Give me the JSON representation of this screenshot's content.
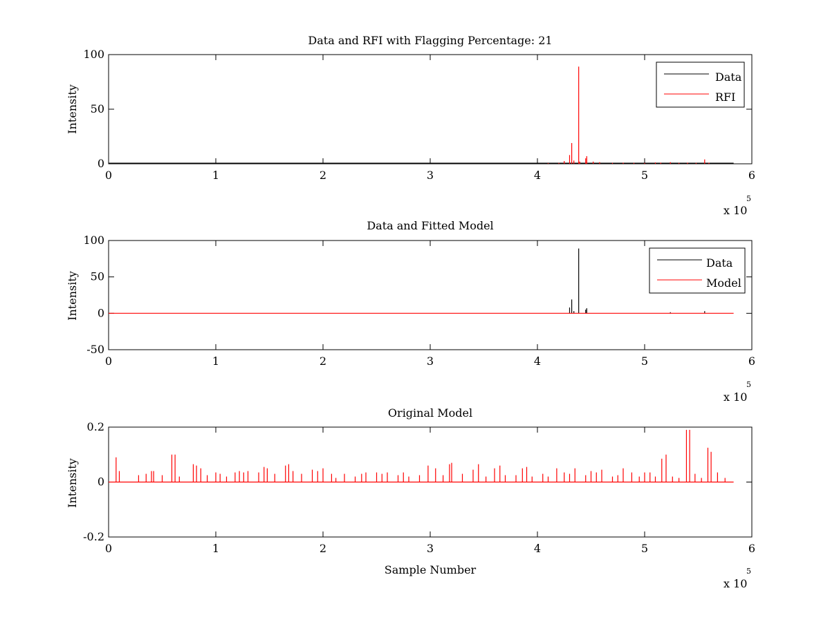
{
  "chart_data": [
    {
      "type": "line",
      "title": "Data and RFI with Flagging Percentage: 21",
      "xlabel": "",
      "ylabel": "Intensity",
      "xlim": [
        0,
        600000
      ],
      "ylim": [
        0,
        100
      ],
      "xticks": [
        0,
        1,
        2,
        3,
        4,
        5,
        6
      ],
      "yticks": [
        0,
        50,
        100
      ],
      "x_multiplier": {
        "base": "x 10",
        "exponent": "5"
      },
      "legend": {
        "placement": "top-right"
      },
      "series": [
        {
          "name": "Data",
          "color": "#000000",
          "kind": "baseline",
          "x": [
            0,
            583000
          ],
          "y": [
            0.6,
            0.6
          ]
        },
        {
          "name": "RFI",
          "color": "#ff0000",
          "kind": "spikes",
          "x": [
            410000,
            420000,
            425000,
            430000,
            432000,
            434000,
            438500,
            439500,
            445000,
            446000,
            452000,
            458000,
            470000,
            480000,
            490000,
            500000,
            510000,
            515000,
            524000,
            532000,
            540000,
            548000,
            556000,
            560000
          ],
          "y": [
            0.6,
            0.8,
            2.5,
            8,
            19,
            3,
            89,
            2,
            5,
            7,
            2,
            1.5,
            0.8,
            1,
            0.8,
            0.8,
            1.2,
            1,
            1.5,
            0.8,
            1,
            0.8,
            4,
            0.9
          ]
        }
      ]
    },
    {
      "type": "line",
      "title": "Data and Fitted Model",
      "xlabel": "",
      "ylabel": "Intensity",
      "xlim": [
        0,
        600000
      ],
      "ylim": [
        -50,
        100
      ],
      "xticks": [
        0,
        1,
        2,
        3,
        4,
        5,
        6
      ],
      "yticks": [
        -50,
        0,
        50,
        100
      ],
      "x_multiplier": {
        "base": "x 10",
        "exponent": "5"
      },
      "legend": {
        "placement": "top-right"
      },
      "series": [
        {
          "name": "Data",
          "color": "#000000",
          "kind": "spikes",
          "x": [
            430000,
            432000,
            434000,
            438500,
            445000,
            446000,
            524000,
            556000
          ],
          "y": [
            8,
            19,
            3,
            89,
            5,
            7,
            1.5,
            3
          ]
        },
        {
          "name": "Model",
          "color": "#ff0000",
          "kind": "baseline",
          "x": [
            0,
            583000
          ],
          "y": [
            0,
            0
          ]
        }
      ]
    },
    {
      "type": "line",
      "title": "Original Model",
      "xlabel": "Sample Number",
      "ylabel": "Intensity",
      "xlim": [
        0,
        600000
      ],
      "ylim": [
        -0.2,
        0.2
      ],
      "xticks": [
        0,
        1,
        2,
        3,
        4,
        5,
        6
      ],
      "yticks": [
        -0.2,
        0,
        0.2
      ],
      "x_multiplier": {
        "base": "x 10",
        "exponent": "5"
      },
      "series": [
        {
          "color": "#ff0000",
          "kind": "spikes",
          "x": [
            7000,
            10000,
            28000,
            35000,
            40000,
            42000,
            50000,
            59000,
            62000,
            66000,
            79000,
            82000,
            86000,
            92000,
            100000,
            104000,
            110000,
            118000,
            122000,
            126000,
            130000,
            140000,
            145000,
            148000,
            155000,
            165000,
            168000,
            172000,
            180000,
            190000,
            195000,
            200000,
            208000,
            212000,
            220000,
            230000,
            236000,
            240000,
            250000,
            255000,
            260000,
            270000,
            275000,
            280000,
            290000,
            298000,
            305000,
            312000,
            318000,
            320000,
            330000,
            340000,
            345000,
            352000,
            360000,
            365000,
            370000,
            380000,
            386000,
            390000,
            395000,
            405000,
            410000,
            418000,
            425000,
            430000,
            435000,
            445000,
            450000,
            455000,
            460000,
            470000,
            475000,
            480000,
            488000,
            495000,
            500000,
            505000,
            510000,
            516000,
            520000,
            526000,
            532000,
            539000,
            542000,
            547000,
            553000,
            559000,
            562000,
            568000,
            575000
          ],
          "y": [
            0.09,
            0.04,
            0.025,
            0.03,
            0.04,
            0.04,
            0.025,
            0.1,
            0.1,
            0.02,
            0.065,
            0.06,
            0.05,
            0.025,
            0.035,
            0.03,
            0.02,
            0.035,
            0.04,
            0.035,
            0.04,
            0.035,
            0.055,
            0.05,
            0.03,
            0.06,
            0.065,
            0.04,
            0.03,
            0.045,
            0.04,
            0.05,
            0.03,
            0.015,
            0.03,
            0.02,
            0.03,
            0.035,
            0.035,
            0.03,
            0.035,
            0.025,
            0.035,
            0.02,
            0.025,
            0.06,
            0.05,
            0.025,
            0.065,
            0.07,
            0.03,
            0.045,
            0.065,
            0.02,
            0.05,
            0.06,
            0.025,
            0.025,
            0.05,
            0.055,
            0.02,
            0.03,
            0.02,
            0.05,
            0.035,
            0.03,
            0.05,
            0.025,
            0.04,
            0.035,
            0.045,
            0.02,
            0.025,
            0.05,
            0.035,
            0.02,
            0.035,
            0.035,
            0.02,
            0.085,
            0.1,
            0.02,
            0.015,
            0.19,
            0.19,
            0.03,
            0.015,
            0.125,
            0.11,
            0.035,
            0.015
          ]
        }
      ]
    }
  ]
}
